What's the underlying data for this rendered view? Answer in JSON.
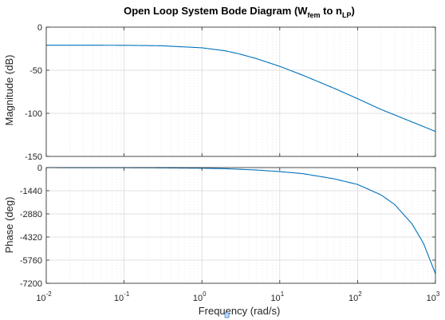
{
  "chart_data": {
    "type": "line",
    "title": {
      "prefix": "Open Loop System Bode Diagram (W",
      "sub1": "fem",
      "middle": " to n",
      "sub2": "LP",
      "suffix": ")"
    },
    "xlabel": "Frequency  (rad/s)",
    "xscale": "log",
    "xlim": [
      0.01,
      1000
    ],
    "xticks": [
      0.01,
      0.1,
      1,
      10,
      100,
      1000
    ],
    "xtick_labels": [
      {
        "base": "10",
        "exp": "-2"
      },
      {
        "base": "10",
        "exp": "-1"
      },
      {
        "base": "10",
        "exp": "0"
      },
      {
        "base": "10",
        "exp": "1"
      },
      {
        "base": "10",
        "exp": "2"
      },
      {
        "base": "10",
        "exp": "3"
      }
    ],
    "grid": true,
    "color": "#0072BD",
    "magnitude": {
      "ylabel": "Magnitude (dB)",
      "ylim": [
        -150,
        0
      ],
      "yticks": [
        0,
        -50,
        -100,
        -150
      ],
      "ytick_labels": [
        "0",
        "-50",
        "-100",
        "-150"
      ],
      "series": [
        {
          "x": [
            0.01,
            0.03,
            0.1,
            0.3,
            1,
            2,
            3,
            5,
            10,
            20,
            50,
            100,
            200,
            500,
            1000
          ],
          "values": [
            -21,
            -21,
            -21.1,
            -21.6,
            -24,
            -27.5,
            -31,
            -36.5,
            -45.5,
            -56,
            -71,
            -83,
            -95.5,
            -110,
            -121
          ]
        }
      ]
    },
    "phase": {
      "ylabel": "Phase (deg)",
      "ylim": [
        -7200,
        0
      ],
      "yticks": [
        0,
        -1440,
        -2880,
        -4320,
        -5760,
        -7200
      ],
      "ytick_labels": [
        "0",
        "-1440",
        "-2880",
        "-4320",
        "-5760",
        "-7200"
      ],
      "series": [
        {
          "x": [
            0.01,
            0.1,
            0.3,
            1,
            2,
            5,
            10,
            20,
            50,
            100,
            200,
            300,
            500,
            700,
            1000
          ],
          "values": [
            0,
            -5,
            -15,
            -40,
            -70,
            -150,
            -250,
            -380,
            -700,
            -1050,
            -1700,
            -2300,
            -3500,
            -4700,
            -6600
          ]
        }
      ]
    }
  }
}
